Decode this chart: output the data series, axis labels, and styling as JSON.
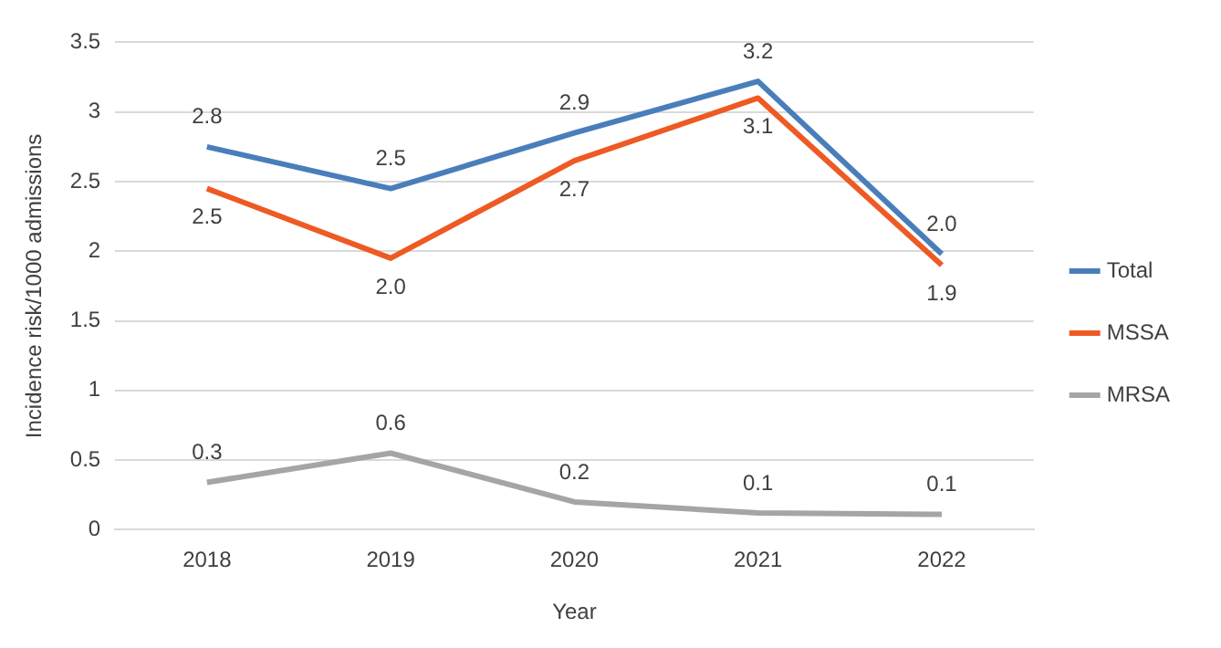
{
  "chart_data": {
    "type": "line",
    "xlabel": "Year",
    "ylabel": "Incidence risk/1000 admissions",
    "categories": [
      "2018",
      "2019",
      "2020",
      "2021",
      "2022"
    ],
    "series": [
      {
        "name": "Total",
        "color": "#4a7ebb",
        "values": [
          2.75,
          2.45,
          2.85,
          3.22,
          1.98
        ],
        "value_labels": [
          "2.8",
          "2.5",
          "2.9",
          "3.2",
          "2.0"
        ]
      },
      {
        "name": "MSSA",
        "color": "#ee5a24",
        "values": [
          2.45,
          1.95,
          2.65,
          3.1,
          1.9
        ],
        "value_labels": [
          "2.5",
          "2.0",
          "2.7",
          "3.1",
          "1.9"
        ]
      },
      {
        "name": "MRSA",
        "color": "#a5a5a5",
        "values": [
          0.34,
          0.55,
          0.2,
          0.12,
          0.11
        ],
        "value_labels": [
          "0.3",
          "0.6",
          "0.2",
          "0.1",
          "0.1"
        ]
      }
    ],
    "ylim": [
      0,
      3.5
    ],
    "yticks": [
      0,
      0.5,
      1,
      1.5,
      2,
      2.5,
      3,
      3.5
    ],
    "grid": "y",
    "legend": "right",
    "marker": "none",
    "line_style": "solid"
  }
}
